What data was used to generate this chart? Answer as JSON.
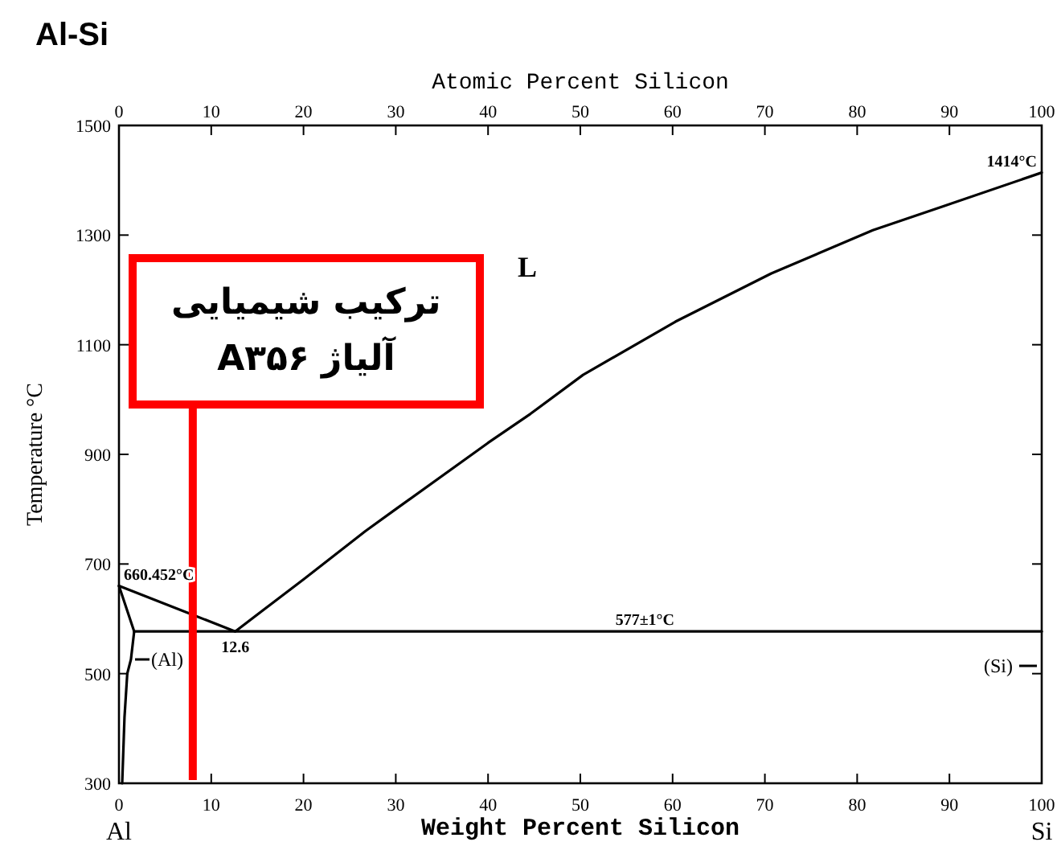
{
  "chart_data": {
    "type": "line",
    "title": "Al-Si",
    "xlabel": "Weight Percent Silicon",
    "x2label": "Atomic Percent Silicon",
    "ylabel": "Temperature °C",
    "xlim": [
      0,
      100
    ],
    "xticks": [
      0,
      10,
      20,
      30,
      40,
      50,
      60,
      70,
      80,
      90,
      100
    ],
    "x2lim": [
      0,
      100
    ],
    "x2ticks": [
      0,
      10,
      20,
      30,
      40,
      50,
      60,
      70,
      80,
      90,
      100
    ],
    "ylim": [
      300,
      1500
    ],
    "yticks": [
      300,
      500,
      700,
      900,
      1100,
      1300,
      1500
    ],
    "grid": false,
    "marker": "none",
    "line_style": "solid",
    "series": [
      {
        "color": "#000000",
        "x": [
          0,
          12.6,
          20,
          26.7,
          30,
          40,
          44.6,
          50.3,
          60.3,
          70.7,
          81.7,
          89.4,
          100
        ],
        "values": [
          660,
          577,
          672,
          760,
          800,
          921,
          974,
          1045,
          1142,
          1230,
          1309,
          1353,
          1414
        ]
      },
      {
        "color": "#000000",
        "x": [
          0,
          1.65,
          1.3,
          0.9,
          0.6,
          0.35
        ],
        "values": [
          660,
          577,
          526,
          500,
          420,
          300
        ]
      },
      {
        "color": "#000000",
        "x": [
          1.65,
          100
        ],
        "values": [
          577,
          577
        ]
      }
    ],
    "ref_lines": [
      {
        "axis": "x",
        "value": 8,
        "label": "ترکیب شیمیایی آلیاژ A۳۵۶",
        "color": "#ff0000"
      }
    ],
    "annotations": [
      {
        "text": "660.452°C",
        "x": 0,
        "y": 660
      },
      {
        "text": "12.6",
        "x": 12.6,
        "y": 577
      },
      {
        "text": "577±1°C",
        "x": 57,
        "y": 577
      },
      {
        "text": "1414°C",
        "x": 100,
        "y": 1414
      },
      "L",
      "(Al)",
      "(Si)",
      "Al",
      "Si"
    ]
  }
}
